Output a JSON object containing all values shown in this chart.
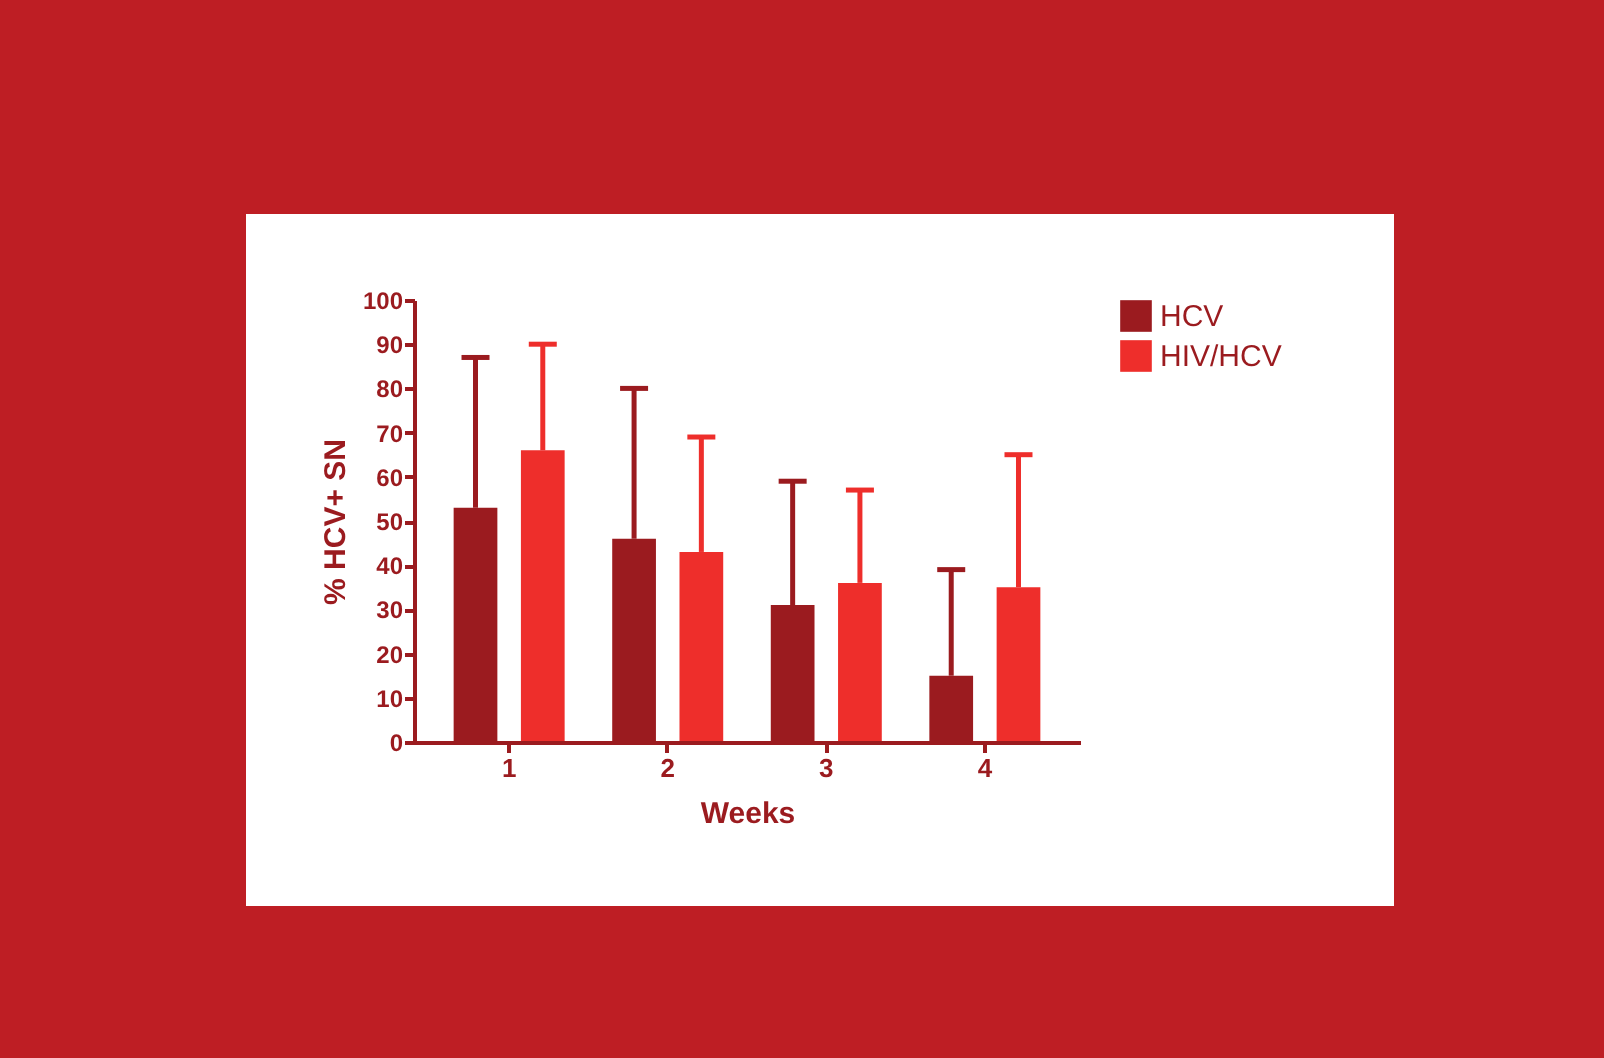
{
  "chart_data": {
    "type": "bar",
    "xlabel": "Weeks",
    "ylabel": "% HCV+ SN",
    "categories": [
      "1",
      "2",
      "3",
      "4"
    ],
    "series": [
      {
        "name": "HCV",
        "color": "#9b1b1f",
        "values": [
          53,
          46,
          31,
          15
        ],
        "errors": [
          [
            53,
            87
          ],
          [
            46,
            80
          ],
          [
            31,
            59
          ],
          [
            15,
            39
          ]
        ]
      },
      {
        "name": "HIV/HCV",
        "color": "#ee2e2b",
        "values": [
          66,
          43,
          36,
          35
        ],
        "errors": [
          [
            66,
            90
          ],
          [
            43,
            69
          ],
          [
            36,
            57
          ],
          [
            35,
            65
          ]
        ]
      }
    ],
    "ylim": [
      0,
      100
    ],
    "yticks": [
      0,
      10,
      20,
      30,
      40,
      50,
      60,
      70,
      80,
      90,
      100
    ],
    "grid": false,
    "legend": "right"
  }
}
